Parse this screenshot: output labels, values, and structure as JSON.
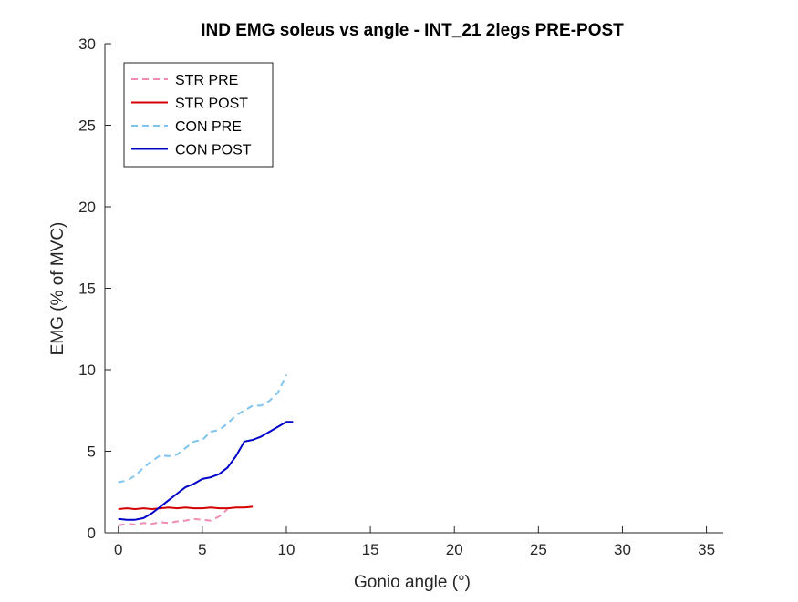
{
  "chart_data": {
    "type": "line",
    "title": "IND EMG soleus vs angle - INT_21 2legs PRE-POST",
    "xlabel": "Gonio angle (°)",
    "ylabel": "EMG (% of MVC)",
    "xlim": [
      -0.8,
      36
    ],
    "ylim": [
      0,
      30
    ],
    "xticks": [
      0,
      5,
      10,
      15,
      20,
      25,
      30,
      35
    ],
    "yticks": [
      0,
      5,
      10,
      15,
      20,
      25,
      30
    ],
    "legend_position": "top-left",
    "series": [
      {
        "name": "STR PRE",
        "color": "#f08cb4",
        "dash": "dashed",
        "x": [
          0,
          0.5,
          1,
          1.5,
          2,
          2.5,
          3,
          3.5,
          4,
          4.5,
          5,
          5.5,
          6,
          6.5
        ],
        "y": [
          0.45,
          0.55,
          0.5,
          0.6,
          0.55,
          0.65,
          0.6,
          0.7,
          0.75,
          0.85,
          0.8,
          0.75,
          1.0,
          1.45
        ]
      },
      {
        "name": "STR POST",
        "color": "#d40000",
        "dash": "solid",
        "x": [
          0,
          0.5,
          1,
          1.5,
          2,
          2.5,
          3,
          3.5,
          4,
          4.5,
          5,
          5.5,
          6,
          6.5,
          7,
          7.5,
          8
        ],
        "y": [
          1.45,
          1.5,
          1.45,
          1.5,
          1.45,
          1.5,
          1.55,
          1.5,
          1.55,
          1.5,
          1.5,
          1.55,
          1.5,
          1.5,
          1.55,
          1.55,
          1.6
        ]
      },
      {
        "name": "CON PRE",
        "color": "#7fc4ef",
        "dash": "dashed",
        "x": [
          0,
          0.5,
          1,
          1.5,
          2,
          2.5,
          3,
          3.5,
          4,
          4.5,
          5,
          5.5,
          6,
          6.5,
          7,
          7.5,
          8,
          8.5,
          9,
          9.5,
          10
        ],
        "y": [
          3.1,
          3.2,
          3.5,
          4.0,
          4.4,
          4.75,
          4.7,
          4.8,
          5.2,
          5.6,
          5.7,
          6.2,
          6.3,
          6.7,
          7.2,
          7.5,
          7.8,
          7.8,
          8.1,
          8.6,
          9.7
        ]
      },
      {
        "name": "CON POST",
        "color": "#0000c8",
        "dash": "solid",
        "x": [
          0,
          0.5,
          1,
          1.5,
          2,
          2.5,
          3,
          3.5,
          4,
          4.5,
          5,
          5.5,
          6,
          6.5,
          7,
          7.5,
          8,
          8.5,
          9,
          9.5,
          10,
          10.4
        ],
        "y": [
          0.85,
          0.8,
          0.8,
          0.9,
          1.2,
          1.6,
          2.0,
          2.4,
          2.8,
          3.0,
          3.3,
          3.4,
          3.6,
          4.0,
          4.7,
          5.6,
          5.7,
          5.9,
          6.2,
          6.5,
          6.8,
          6.8
        ]
      }
    ]
  }
}
